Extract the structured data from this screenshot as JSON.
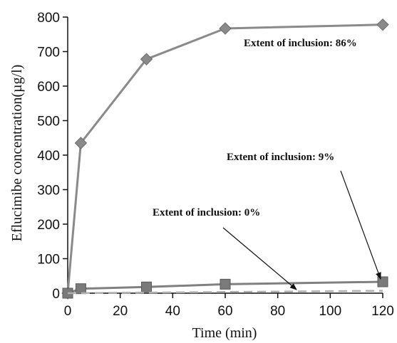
{
  "chart_data": {
    "type": "line",
    "xlabel": "Time (min)",
    "ylabel": "Eflucimibe concentration(µg/l)",
    "xlim": [
      0,
      120
    ],
    "ylim": [
      0,
      800
    ],
    "xticks": [
      0,
      20,
      40,
      60,
      80,
      100,
      120
    ],
    "yticks": [
      0,
      100,
      200,
      300,
      400,
      500,
      600,
      700,
      800
    ],
    "grid": false,
    "series": [
      {
        "color": "#8a8a8a",
        "marker": "diamond",
        "style": "solid",
        "x": [
          0,
          5,
          30,
          60,
          120
        ],
        "y": [
          0,
          435,
          678,
          767,
          778
        ]
      },
      {
        "color": "#808080",
        "marker": "square",
        "style": "solid",
        "x": [
          0,
          5,
          30,
          60,
          120
        ],
        "y": [
          0,
          13,
          18,
          26,
          33
        ]
      },
      {
        "color": "#b0b0b0",
        "marker": "none",
        "style": "dashed",
        "x": [
          0,
          120
        ],
        "y": [
          0,
          7
        ]
      }
    ],
    "annotations": [
      {
        "text": "Extent of inclusion: 86%"
      },
      {
        "text": "Extent of inclusion: 9%"
      },
      {
        "text": "Extent of inclusion: 0%"
      }
    ]
  }
}
